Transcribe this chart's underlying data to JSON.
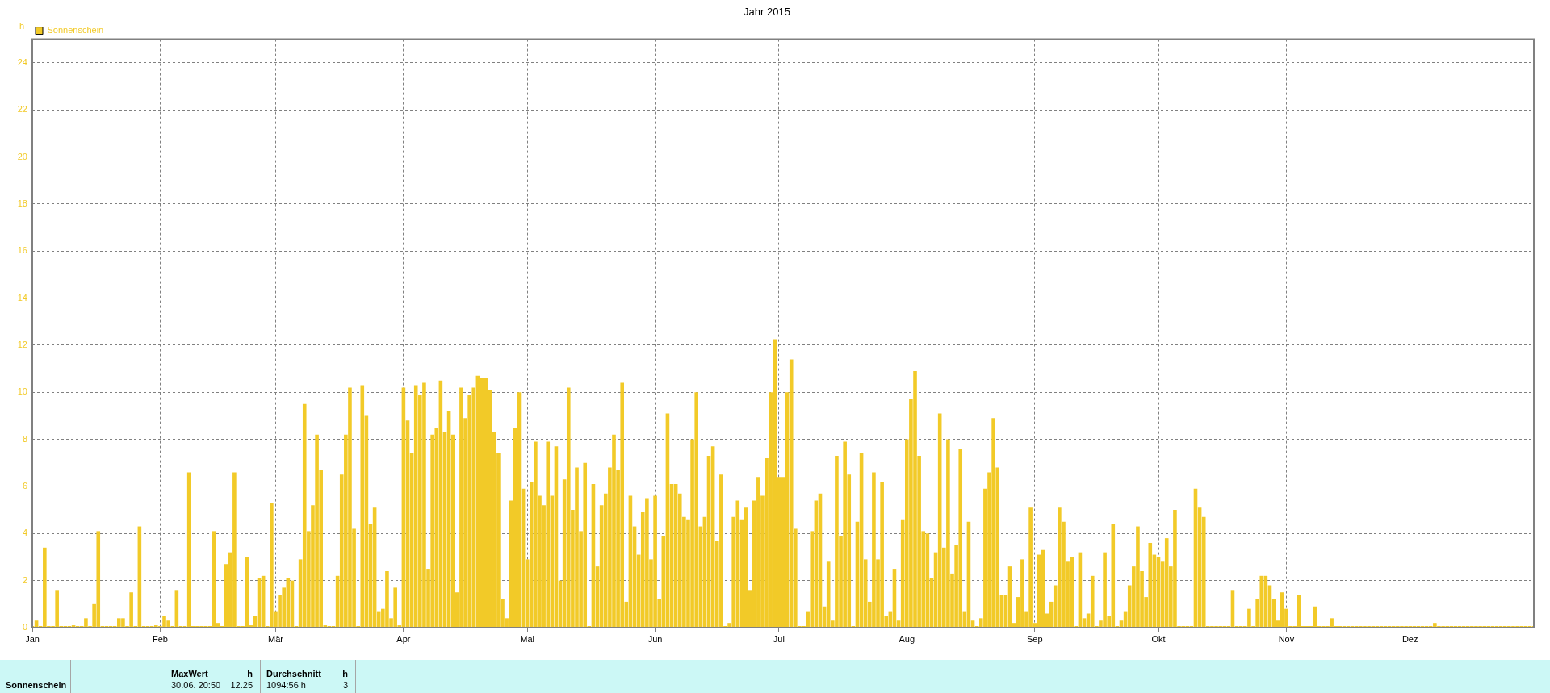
{
  "chart_data": {
    "type": "bar",
    "title": "Jahr 2015",
    "ylabel": "h",
    "legend": "top left",
    "grid": true,
    "x": [
      "2015-01-01",
      "2015-01-02",
      "2015-01-03",
      "2015-01-04",
      "2015-01-05",
      "2015-01-06",
      "2015-01-07",
      "2015-01-08",
      "2015-01-09",
      "2015-01-10",
      "2015-01-11",
      "2015-01-12",
      "2015-01-13",
      "2015-01-14",
      "2015-01-15",
      "2015-01-16",
      "2015-01-17",
      "2015-01-18",
      "2015-01-19",
      "2015-01-20",
      "2015-01-21",
      "2015-01-22",
      "2015-01-23",
      "2015-01-24",
      "2015-01-25",
      "2015-01-26",
      "2015-01-27",
      "2015-01-28",
      "2015-01-29",
      "2015-01-30",
      "2015-01-31",
      "2015-02-01",
      "2015-02-02",
      "2015-02-03",
      "2015-02-04",
      "2015-02-05",
      "2015-02-06",
      "2015-02-07",
      "2015-02-08",
      "2015-02-09",
      "2015-02-10",
      "2015-02-11",
      "2015-02-12",
      "2015-02-13",
      "2015-02-14",
      "2015-02-15",
      "2015-02-16",
      "2015-02-17",
      "2015-02-18",
      "2015-02-19",
      "2015-02-20",
      "2015-02-21",
      "2015-02-22",
      "2015-02-23",
      "2015-02-24",
      "2015-02-25",
      "2015-02-26",
      "2015-02-27",
      "2015-02-28",
      "2015-03-01",
      "2015-03-02",
      "2015-03-03",
      "2015-03-04",
      "2015-03-05",
      "2015-03-06",
      "2015-03-07",
      "2015-03-08",
      "2015-03-09",
      "2015-03-10",
      "2015-03-11",
      "2015-03-12",
      "2015-03-13",
      "2015-03-14",
      "2015-03-15",
      "2015-03-16",
      "2015-03-17",
      "2015-03-18",
      "2015-03-19",
      "2015-03-20",
      "2015-03-21",
      "2015-03-22",
      "2015-03-23",
      "2015-03-24",
      "2015-03-25",
      "2015-03-26",
      "2015-03-27",
      "2015-03-28",
      "2015-03-29",
      "2015-03-30",
      "2015-03-31",
      "2015-04-01",
      "2015-04-02",
      "2015-04-03",
      "2015-04-04",
      "2015-04-05",
      "2015-04-06",
      "2015-04-07",
      "2015-04-08",
      "2015-04-09",
      "2015-04-10",
      "2015-04-11",
      "2015-04-12",
      "2015-04-13",
      "2015-04-14",
      "2015-04-15",
      "2015-04-16",
      "2015-04-17",
      "2015-04-18",
      "2015-04-19",
      "2015-04-20",
      "2015-04-21",
      "2015-04-22",
      "2015-04-23",
      "2015-04-24",
      "2015-04-25",
      "2015-04-26",
      "2015-04-27",
      "2015-04-28",
      "2015-04-29",
      "2015-04-30",
      "2015-05-01",
      "2015-05-02",
      "2015-05-03",
      "2015-05-04",
      "2015-05-05",
      "2015-05-06",
      "2015-05-07",
      "2015-05-08",
      "2015-05-09",
      "2015-05-10",
      "2015-05-11",
      "2015-05-12",
      "2015-05-13",
      "2015-05-14",
      "2015-05-15",
      "2015-05-16",
      "2015-05-17",
      "2015-05-18",
      "2015-05-19",
      "2015-05-20",
      "2015-05-21",
      "2015-05-22",
      "2015-05-23",
      "2015-05-24",
      "2015-05-25",
      "2015-05-26",
      "2015-05-27",
      "2015-05-28",
      "2015-05-29",
      "2015-05-30",
      "2015-05-31",
      "2015-06-01",
      "2015-06-02",
      "2015-06-03",
      "2015-06-04",
      "2015-06-05",
      "2015-06-06",
      "2015-06-07",
      "2015-06-08",
      "2015-06-09",
      "2015-06-10",
      "2015-06-11",
      "2015-06-12",
      "2015-06-13",
      "2015-06-14",
      "2015-06-15",
      "2015-06-16",
      "2015-06-17",
      "2015-06-18",
      "2015-06-19",
      "2015-06-20",
      "2015-06-21",
      "2015-06-22",
      "2015-06-23",
      "2015-06-24",
      "2015-06-25",
      "2015-06-26",
      "2015-06-27",
      "2015-06-28",
      "2015-06-29",
      "2015-06-30",
      "2015-07-01",
      "2015-07-02",
      "2015-07-03",
      "2015-07-04",
      "2015-07-05",
      "2015-07-06",
      "2015-07-07",
      "2015-07-08",
      "2015-07-09",
      "2015-07-10",
      "2015-07-11",
      "2015-07-12",
      "2015-07-13",
      "2015-07-14",
      "2015-07-15",
      "2015-07-16",
      "2015-07-17",
      "2015-07-18",
      "2015-07-19",
      "2015-07-20",
      "2015-07-21",
      "2015-07-22",
      "2015-07-23",
      "2015-07-24",
      "2015-07-25",
      "2015-07-26",
      "2015-07-27",
      "2015-07-28",
      "2015-07-29",
      "2015-07-30",
      "2015-07-31",
      "2015-08-01",
      "2015-08-02",
      "2015-08-03",
      "2015-08-04",
      "2015-08-05",
      "2015-08-06",
      "2015-08-07",
      "2015-08-08",
      "2015-08-09",
      "2015-08-10",
      "2015-08-11",
      "2015-08-12",
      "2015-08-13",
      "2015-08-14",
      "2015-08-15",
      "2015-08-16",
      "2015-08-17",
      "2015-08-18",
      "2015-08-19",
      "2015-08-20",
      "2015-08-21",
      "2015-08-22",
      "2015-08-23",
      "2015-08-24",
      "2015-08-25",
      "2015-08-26",
      "2015-08-27",
      "2015-08-28",
      "2015-08-29",
      "2015-08-30",
      "2015-08-31",
      "2015-09-01",
      "2015-09-02",
      "2015-09-03",
      "2015-09-04",
      "2015-09-05",
      "2015-09-06",
      "2015-09-07",
      "2015-09-08",
      "2015-09-09",
      "2015-09-10",
      "2015-09-11",
      "2015-09-12",
      "2015-09-13",
      "2015-09-14",
      "2015-09-15",
      "2015-09-16",
      "2015-09-17",
      "2015-09-18",
      "2015-09-19",
      "2015-09-20",
      "2015-09-21",
      "2015-09-22",
      "2015-09-23",
      "2015-09-24",
      "2015-09-25",
      "2015-09-26",
      "2015-09-27",
      "2015-09-28",
      "2015-09-29",
      "2015-09-30",
      "2015-10-01",
      "2015-10-02",
      "2015-10-03",
      "2015-10-04",
      "2015-10-05",
      "2015-10-06",
      "2015-10-07",
      "2015-10-08",
      "2015-10-09",
      "2015-10-10",
      "2015-10-11",
      "2015-10-12",
      "2015-10-13",
      "2015-10-14",
      "2015-10-15",
      "2015-10-16",
      "2015-10-17",
      "2015-10-18",
      "2015-10-19",
      "2015-10-20",
      "2015-10-21",
      "2015-10-22",
      "2015-10-23",
      "2015-10-24",
      "2015-10-25",
      "2015-10-26",
      "2015-10-27",
      "2015-10-28",
      "2015-10-29",
      "2015-10-30",
      "2015-10-31",
      "2015-11-01",
      "2015-11-02",
      "2015-11-03",
      "2015-11-04",
      "2015-11-05",
      "2015-11-06",
      "2015-11-07",
      "2015-11-08",
      "2015-11-09",
      "2015-11-10",
      "2015-11-11",
      "2015-11-12",
      "2015-11-13",
      "2015-11-14",
      "2015-11-15",
      "2015-11-16",
      "2015-11-17",
      "2015-11-18",
      "2015-11-19",
      "2015-11-20",
      "2015-11-21",
      "2015-11-22",
      "2015-11-23",
      "2015-11-24",
      "2015-11-25",
      "2015-11-26",
      "2015-11-27",
      "2015-11-28",
      "2015-11-29",
      "2015-11-30",
      "2015-12-01",
      "2015-12-02",
      "2015-12-03",
      "2015-12-04",
      "2015-12-05",
      "2015-12-06",
      "2015-12-07",
      "2015-12-08",
      "2015-12-09",
      "2015-12-10",
      "2015-12-11",
      "2015-12-12",
      "2015-12-13",
      "2015-12-14",
      "2015-12-15",
      "2015-12-16",
      "2015-12-17",
      "2015-12-18",
      "2015-12-19",
      "2015-12-20",
      "2015-12-21",
      "2015-12-22",
      "2015-12-23",
      "2015-12-24",
      "2015-12-25",
      "2015-12-26",
      "2015-12-27",
      "2015-12-28",
      "2015-12-29",
      "2015-12-30",
      "2015-12-31"
    ],
    "series": [
      {
        "name": "Sonnenschein",
        "color": "#f2ca28",
        "values": [
          0,
          0.3,
          0,
          3.4,
          0,
          0,
          1.6,
          0,
          0,
          0,
          0.1,
          0,
          0,
          0.4,
          0,
          1.0,
          4.1,
          0,
          0,
          0,
          0,
          0.4,
          0.4,
          0,
          1.5,
          0,
          4.3,
          0,
          0,
          0,
          0.1,
          0,
          0.5,
          0.3,
          0,
          1.6,
          0,
          0,
          6.6,
          0,
          0,
          0,
          0,
          0,
          4.1,
          0.2,
          0,
          2.7,
          3.2,
          6.6,
          0,
          0,
          3.0,
          0.1,
          0.5,
          2.1,
          2.2,
          0,
          5.3,
          0.7,
          1.4,
          1.7,
          2.1,
          2.0,
          0,
          2.9,
          9.5,
          4.1,
          5.2,
          8.2,
          6.7,
          0.1,
          0,
          0,
          2.2,
          6.5,
          8.2,
          10.2,
          4.2,
          0,
          10.3,
          9.0,
          4.4,
          5.1,
          0.7,
          0.8,
          2.4,
          0.4,
          1.7,
          0.1,
          10.2,
          8.8,
          7.4,
          10.3,
          9.9,
          10.4,
          2.5,
          8.2,
          8.5,
          10.5,
          8.3,
          9.2,
          8.2,
          1.5,
          10.2,
          8.9,
          9.9,
          10.2,
          10.7,
          10.6,
          10.6,
          10.1,
          8.3,
          7.4,
          1.2,
          0.4,
          5.4,
          8.5,
          10.0,
          5.9,
          2.9,
          6.2,
          7.9,
          5.6,
          5.2,
          7.9,
          5.6,
          7.7,
          2.0,
          6.3,
          10.2,
          5.0,
          6.8,
          4.1,
          7.0,
          0,
          6.1,
          2.6,
          5.2,
          5.7,
          6.8,
          8.2,
          6.7,
          10.4,
          1.1,
          5.6,
          4.3,
          3.1,
          4.9,
          5.5,
          2.9,
          5.6,
          1.2,
          3.9,
          9.1,
          6.1,
          6.1,
          5.7,
          4.7,
          4.6,
          8.0,
          10.0,
          4.3,
          4.7,
          7.3,
          7.7,
          3.7,
          6.5,
          0,
          0.2,
          4.7,
          5.4,
          4.6,
          5.1,
          1.6,
          5.4,
          6.4,
          5.6,
          7.2,
          10.0,
          12.25,
          6.4,
          6.4,
          10.0,
          11.4,
          4.2,
          0,
          0,
          0.7,
          4.1,
          5.4,
          5.7,
          0.9,
          2.8,
          0.3,
          7.3,
          3.9,
          7.9,
          6.5,
          0,
          4.5,
          7.4,
          2.9,
          1.1,
          6.6,
          2.9,
          6.2,
          0.5,
          0.7,
          2.5,
          0.3,
          4.6,
          8.0,
          9.7,
          10.9,
          7.3,
          4.1,
          4.0,
          2.1,
          3.2,
          9.1,
          3.4,
          8.0,
          2.3,
          3.5,
          7.6,
          0.7,
          4.5,
          0.3,
          0,
          0.4,
          5.9,
          6.6,
          8.9,
          6.8,
          1.4,
          1.4,
          2.6,
          0.2,
          1.3,
          2.9,
          0.7,
          5.1,
          0.2,
          3.1,
          3.3,
          0.6,
          1.1,
          1.8,
          5.1,
          4.5,
          2.8,
          3.0,
          0,
          3.2,
          0.4,
          0.6,
          2.2,
          0,
          0.3,
          3.2,
          0.5,
          4.4,
          0,
          0.3,
          0.7,
          1.8,
          2.6,
          4.3,
          2.4,
          1.3,
          3.6,
          3.1,
          3.0,
          2.8,
          3.8,
          2.6,
          5.0,
          0,
          0,
          0,
          0,
          5.9,
          5.1,
          4.7,
          0,
          0,
          0,
          0,
          0,
          0,
          1.6,
          0,
          0,
          0,
          0.8,
          0,
          1.2,
          2.2,
          2.2,
          1.8,
          1.2,
          0.3,
          1.5,
          0.8,
          0,
          0,
          1.4,
          0,
          0,
          0,
          0.9,
          0,
          0,
          0,
          0.4,
          0,
          0,
          0,
          0,
          0,
          0,
          0,
          0,
          0,
          0,
          0,
          0,
          0,
          0,
          0,
          0,
          0,
          0,
          0,
          0,
          0,
          0,
          0,
          0,
          0.2,
          0,
          0,
          0,
          0,
          0,
          0,
          0,
          0,
          0,
          0,
          0,
          0,
          0,
          0,
          0,
          0,
          0,
          0,
          0,
          0,
          0,
          0,
          0,
          0
        ]
      }
    ],
    "xlim": [
      "2015-01-01",
      "2015-12-31"
    ],
    "xticks": [
      {
        "value": "2015-01-01",
        "label": "Jan"
      },
      {
        "value": "2015-02-01",
        "label": "Feb"
      },
      {
        "value": "2015-03-01",
        "label": "Mär"
      },
      {
        "value": "2015-04-01",
        "label": "Apr"
      },
      {
        "value": "2015-05-01",
        "label": "Mai"
      },
      {
        "value": "2015-06-01",
        "label": "Jun"
      },
      {
        "value": "2015-07-01",
        "label": "Jul"
      },
      {
        "value": "2015-08-01",
        "label": "Aug"
      },
      {
        "value": "2015-09-01",
        "label": "Sep"
      },
      {
        "value": "2015-10-01",
        "label": "Okt"
      },
      {
        "value": "2015-11-01",
        "label": "Nov"
      },
      {
        "value": "2015-12-01",
        "label": "Dez"
      }
    ],
    "ylim": [
      0,
      25
    ],
    "yticks": [
      0,
      2,
      4,
      6,
      8,
      10,
      12,
      14,
      16,
      18,
      20,
      22,
      24
    ],
    "annotations": [
      "MaxWert",
      "h",
      "30.06. 20:50",
      "12.25",
      "Durchschnitt",
      "h",
      "1094:56 h",
      "3"
    ]
  }
}
